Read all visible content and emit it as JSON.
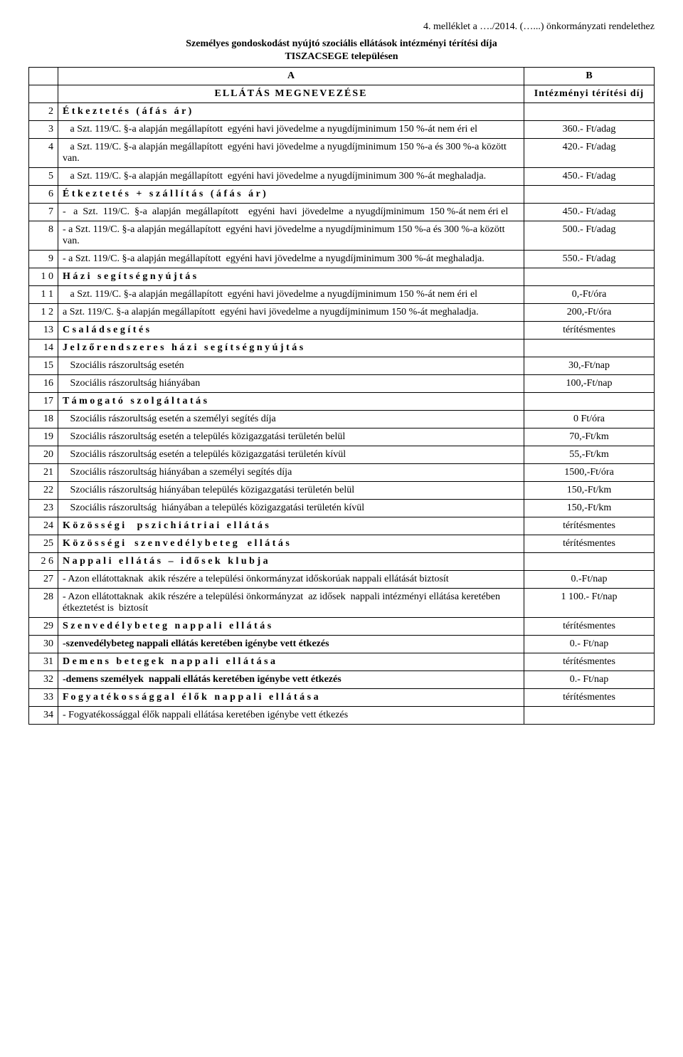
{
  "header": {
    "attachment_line": "4. melléklet a …./2014. (…...) önkormányzati rendelethez",
    "title": "Személyes gondoskodást nyújtó szociális ellátások intézményi térítési díja",
    "subtitle": "TISZACSEGE településen",
    "col_a": "A",
    "col_b": "B",
    "heading_a": "ELLÁTÁS MEGNEVEZÉSE",
    "heading_b": "Intézményi térítési díj"
  },
  "rows": [
    {
      "n": "2",
      "desc": "É t k e z t e t é s   ( á f á s   á r )",
      "val": "",
      "bold": true,
      "spaced": false
    },
    {
      "n": "3",
      "desc": "   a Szt. 119/C. §-a alapján megállapított  egyéni havi jövedelme a nyugdíjminimum 150 %-át nem éri el",
      "val": "360.- Ft/adag"
    },
    {
      "n": "4",
      "desc": "   a Szt. 119/C. §-a alapján megállapított  egyéni havi jövedelme a nyugdíjminimum 150 %-a és 300 %-a között van.",
      "val": "420.- Ft/adag"
    },
    {
      "n": "5",
      "desc": "   a Szt. 119/C. §-a alapján megállapított  egyéni havi jövedelme a nyugdíjminimum 300 %-át meghaladja.",
      "val": "450.- Ft/adag"
    },
    {
      "n": "6",
      "desc": "É t k e z t e t é s   +   s z á l l í t á s   ( á f á s   á r )",
      "val": "",
      "bold": true,
      "spaced": false
    },
    {
      "n": "7",
      "desc": "-   a  Szt.  119/C.  §-a  alapján  megállapított    egyéni  havi  jövedelme  a nyugdíjminimum  150 %-át nem éri el",
      "val": "450.- Ft/adag"
    },
    {
      "n": "8",
      "desc": "- a Szt. 119/C. §-a alapján megállapított  egyéni havi jövedelme a nyugdíjminimum 150 %-a és 300 %-a között van.",
      "val": "500.- Ft/adag"
    },
    {
      "n": "9",
      "desc": "- a Szt. 119/C. §-a alapján megállapított  egyéni havi jövedelme a nyugdíjminimum 300 %-át meghaladja.",
      "val": "550.- Ft/adag"
    },
    {
      "n": "1 0",
      "desc": "H á z i   s e g í t s é g n y ú j t á s",
      "val": "",
      "bold": true,
      "spaced": false
    },
    {
      "n": "1 1",
      "desc": "   a Szt. 119/C. §-a alapján megállapított  egyéni havi jövedelme a nyugdíjminimum 150 %-át nem éri el",
      "val": "0,-Ft/óra"
    },
    {
      "n": "1 2",
      "desc": "a Szt. 119/C. §-a alapján megállapított  egyéni havi jövedelme a nyugdíjminimum 150 %-át meghaladja.",
      "val": "200,-Ft/óra"
    },
    {
      "n": "13",
      "desc": "C s a l á d s e g í t é s",
      "val": "térítésmentes",
      "bold": true,
      "spaced": false
    },
    {
      "n": "14",
      "desc": "J e l z ő r e n d s z e r e s   h á z i   s e g í t s é g n y ú j t á s",
      "val": "",
      "bold": true,
      "spaced": false
    },
    {
      "n": "15",
      "desc": "   Szociális rászorultság esetén",
      "val": "30,-Ft/nap"
    },
    {
      "n": "16",
      "desc": "   Szociális rászorultság hiányában",
      "val": "100,-Ft/nap"
    },
    {
      "n": "17",
      "desc": "T á m o g a t ó   s z o l g á l t a t á s",
      "val": "",
      "bold": true,
      "spaced": false
    },
    {
      "n": "18",
      "desc": "   Szociális rászorultság esetén a személyi segítés díja",
      "val": "0 Ft/óra"
    },
    {
      "n": "19",
      "desc": "   Szociális rászorultság esetén a település közigazgatási területén belül",
      "val": "70,-Ft/km"
    },
    {
      "n": "20",
      "desc": "   Szociális rászorultság esetén a település közigazgatási területén kívül",
      "val": "55,-Ft/km"
    },
    {
      "n": "21",
      "desc": "   Szociális rászorultság hiányában a személyi segítés díja",
      "val": "1500,-Ft/óra"
    },
    {
      "n": "22",
      "desc": "   Szociális rászorultság hiányában település közigazgatási területén belül",
      "val": "150,-Ft/km"
    },
    {
      "n": "23",
      "desc": "   Szociális rászorultság  hiányában a település közigazgatási területén kívül",
      "val": "150,-Ft/km"
    },
    {
      "n": "24",
      "desc": "K ö z ö s s é g i     p s z i c h i á t r i a i   e l l á t á s",
      "val": "térítésmentes",
      "bold": true,
      "spaced": false
    },
    {
      "n": "25",
      "desc": "K ö z ö s s é g i    s z e n v e d é l y b e t e g    e l l á t á s",
      "val": "térítésmentes",
      "bold": true,
      "spaced": false
    },
    {
      "n": "2 6",
      "desc": "N a p p a l i   e l l á t á s   –   i d ő s e k   k l u b j a",
      "val": "",
      "bold": true,
      "spaced": false
    },
    {
      "n": "27",
      "desc": "- Azon ellátottaknak  akik részére a települési önkormányzat időskorúak nappali ellátását biztosít",
      "val": "0.-Ft/nap"
    },
    {
      "n": "28",
      "desc": "- Azon ellátottaknak  akik részére a települési önkormányzat  az idősek  nappali intézményi ellátása keretében étkeztetést is  biztosít",
      "val": "1 100.- Ft/nap"
    },
    {
      "n": "29",
      "desc": "S z e n v e d é l y b e t e g   n a p p a l i   e l l á t á s",
      "val": "térítésmentes",
      "bold": true,
      "spaced": false
    },
    {
      "n": "30",
      "desc": "-szenvedélybeteg nappali ellátás keretében igénybe vett étkezés",
      "val": "0.- Ft/nap",
      "bold": true
    },
    {
      "n": "31",
      "desc": "D e m e n s   b e t e g e k   n a p p a l i   e l l á t á s a",
      "val": "térítésmentes",
      "bold": true,
      "spaced": false
    },
    {
      "n": "32",
      "desc": "-demens személyek  nappali ellátás keretében igénybe vett étkezés",
      "val": "0.- Ft/nap",
      "bold": true
    },
    {
      "n": "33",
      "desc": "F o g y a t é k o s s á g g a l   é l ő k   n a p p a l i   e l l á t á s a",
      "val": "térítésmentes",
      "bold": true,
      "spaced": false
    },
    {
      "n": "34",
      "desc": "- Fogyatékossággal élők nappali ellátása keretében igénybe vett étkezés",
      "val": ""
    }
  ]
}
